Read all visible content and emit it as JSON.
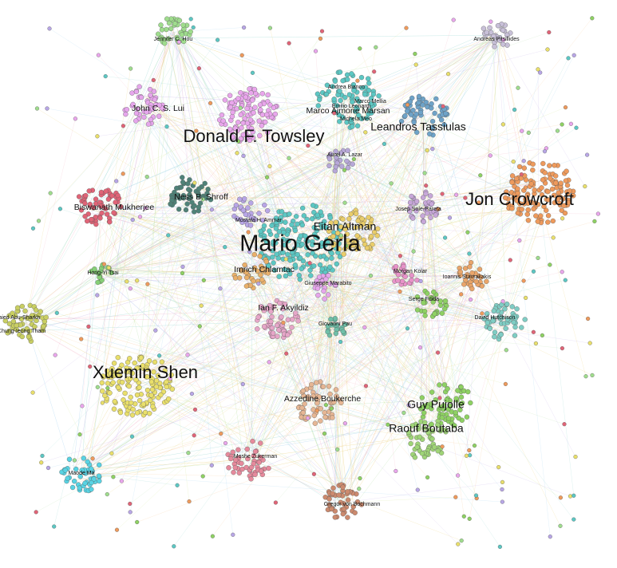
{
  "graph": {
    "type": "coauthorship-network",
    "edge_palette": [
      "#9ad9d3",
      "#f4b6c8",
      "#d4e89a",
      "#c7b3e8",
      "#f7c99a",
      "#a8d4f0",
      "#bfe3b4",
      "#ead27a"
    ],
    "clusters": [
      {
        "id": "gerla",
        "label": "Mario Gerla",
        "color": "#5cc7c3",
        "n": 170,
        "label_size": "xl"
      },
      {
        "id": "crowcroft",
        "label": "Jon Crowcroft",
        "color": "#ee9a5c",
        "n": 130,
        "label_size": "l"
      },
      {
        "id": "towsley",
        "label": "Donald F. Towsley",
        "color": "#e9a6ec",
        "n": 110,
        "label_size": "l"
      },
      {
        "id": "shen",
        "label": "Xuemin Shen",
        "color": "#e9df6b",
        "n": 140,
        "label_size": "l"
      },
      {
        "id": "altman",
        "label": "Eitan Altman",
        "color": "#e9cd6a",
        "n": 60,
        "label_size": "m"
      },
      {
        "id": "tassiulas",
        "label": "Leandros Tassiulas",
        "color": "#6ea3c8",
        "n": 55,
        "label_size": "m"
      },
      {
        "id": "pujolle",
        "label": "Guy Pujolle",
        "color": "#8ed163",
        "n": 60,
        "label_size": "m"
      },
      {
        "id": "boutaba",
        "label": "Raouf Boutaba",
        "color": "#9fd477",
        "n": 50,
        "label_size": "m"
      },
      {
        "id": "marsan",
        "label": "Marco Ajmone Marsan",
        "color": "#5cc7c3",
        "n": 80,
        "label_size": "s"
      },
      {
        "id": "mellia",
        "label": "Marco Mellia",
        "color": "#5cc7c3",
        "n": 0,
        "label_size": "xs"
      },
      {
        "id": "leonardi",
        "label": "Emilio Leonardi",
        "color": "#5cc7c3",
        "n": 0,
        "label_size": "xs"
      },
      {
        "id": "meo",
        "label": "Michela Meo",
        "color": "#5cc7c3",
        "n": 0,
        "label_size": "xs"
      },
      {
        "id": "barre",
        "label": "Andrea Bianco",
        "color": "#5cc7c3",
        "n": 0,
        "label_size": "xs"
      },
      {
        "id": "lui",
        "label": "John C. S. Lui",
        "color": "#e6a6ec",
        "n": 45,
        "label_size": "s"
      },
      {
        "id": "hou",
        "label": "Jennifer C. Hou",
        "color": "#9fdc8d",
        "n": 35,
        "label_size": "xs"
      },
      {
        "id": "shroff",
        "label": "Ness B. Shroff",
        "color": "#4f8278",
        "n": 50,
        "label_size": "s"
      },
      {
        "id": "mukherjee",
        "label": "Biswanath Mukherjee",
        "color": "#e06477",
        "n": 55,
        "label_size": "s"
      },
      {
        "id": "ammar",
        "label": "Mostafa H. Ammar",
        "color": "#b8a6e6",
        "n": 30,
        "label_size": "xs"
      },
      {
        "id": "chlamtac",
        "label": "Imrich Chlamtac",
        "color": "#e9b06a",
        "n": 35,
        "label_size": "s"
      },
      {
        "id": "marabito",
        "label": "Giuseppe Marabito",
        "color": "#e6a6ec",
        "n": 20,
        "label_size": "xs"
      },
      {
        "id": "akyildiz",
        "label": "Ian F. Akyildiz",
        "color": "#e6a6c8",
        "n": 55,
        "label_size": "s"
      },
      {
        "id": "pareta",
        "label": "Josep Sole-Pareta",
        "color": "#c7a7d9",
        "n": 35,
        "label_size": "xs"
      },
      {
        "id": "kolar",
        "label": "Morgan Kolar",
        "color": "#e893c9",
        "n": 20,
        "label_size": "xs"
      },
      {
        "id": "stavrakakis",
        "label": "Ioannis Stavrakakis",
        "color": "#e9a56a",
        "n": 30,
        "label_size": "xs"
      },
      {
        "id": "fdida",
        "label": "Serge Fdida",
        "color": "#8ed163",
        "n": 30,
        "label_size": "xs"
      },
      {
        "id": "hutchison",
        "label": "David Hutchison",
        "color": "#7fcdc4",
        "n": 50,
        "label_size": "xs"
      },
      {
        "id": "boukerche",
        "label": "Azzedine Boukerche",
        "color": "#e6b694",
        "n": 55,
        "label_size": "s"
      },
      {
        "id": "zukerman",
        "label": "Moshe Zukerman",
        "color": "#e68a9c",
        "n": 45,
        "label_size": "xs"
      },
      {
        "id": "ma",
        "label": "Maode Ma",
        "color": "#58d3e3",
        "n": 45,
        "label_size": "xs"
      },
      {
        "id": "bochmann",
        "label": "Gregor von Bochmann",
        "color": "#cc8a6e",
        "n": 45,
        "label_size": "xs"
      },
      {
        "id": "mitrou",
        "label": "Andreas Pitsillides",
        "color": "#c8c0d8",
        "n": 25,
        "label_size": "xs"
      },
      {
        "id": "leftcl",
        "label": "Chung-Ieong Tham",
        "color": "#c9cf62",
        "n": 55,
        "label_size": "xs"
      },
      {
        "id": "leftcl2",
        "label": "Saied Abu-Sharkh",
        "color": "#c9cf62",
        "n": 0,
        "label_size": "xs"
      },
      {
        "id": "rosenberg",
        "label": "Giovanni Pau",
        "color": "#6fbfa8",
        "n": 20,
        "label_size": "xs"
      },
      {
        "id": "cat",
        "label": "Aurel A. Lazar",
        "color": "#b7a8d8",
        "n": 20,
        "label_size": "xs"
      },
      {
        "id": "green",
        "label": "Hong-Yi Tsai",
        "color": "#86cf76",
        "n": 18,
        "label_size": "xs"
      }
    ]
  }
}
